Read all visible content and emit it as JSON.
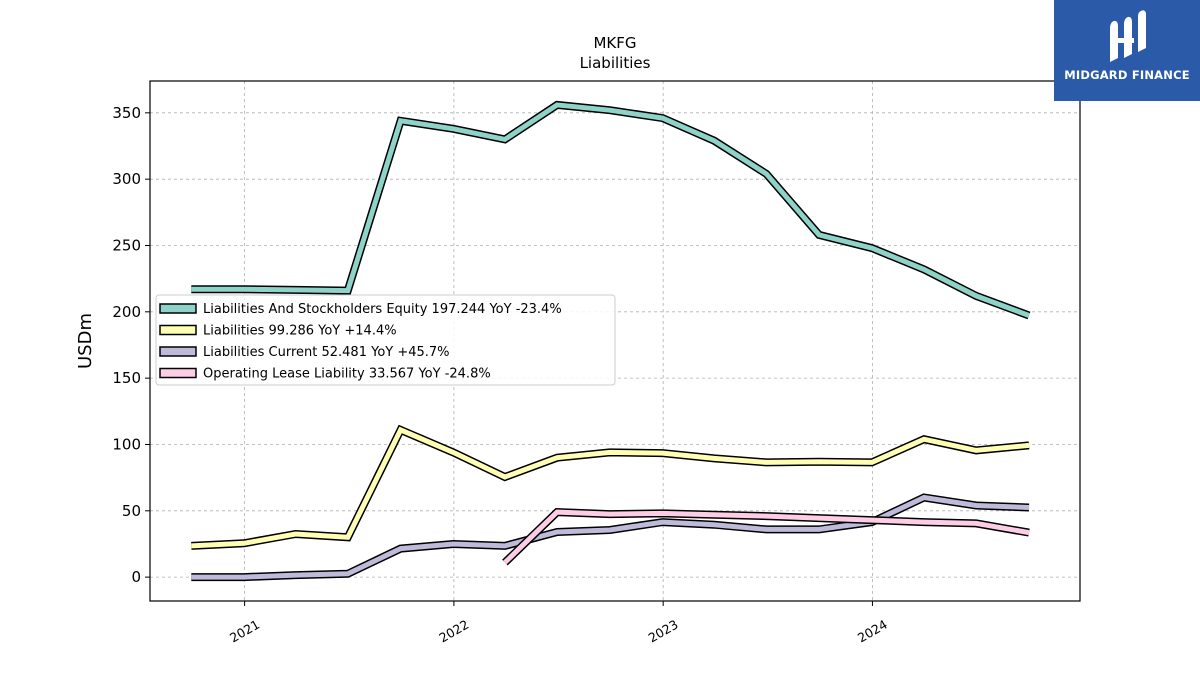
{
  "brand": {
    "name": "MIDGARD FINANCE",
    "color": "#2b5aa8"
  },
  "chart_data": {
    "type": "line",
    "title": "MKFG",
    "subtitle": "Liabilities",
    "xlabel": "",
    "ylabel": "USDm",
    "x_ticks": [
      "2021",
      "2022",
      "2023",
      "2024"
    ],
    "y_ticks": [
      0,
      50,
      100,
      150,
      200,
      250,
      300,
      350
    ],
    "xlim": [
      "2020-07-20",
      "2024-12-28"
    ],
    "ylim": [
      -18,
      374
    ],
    "grid": true,
    "legend_position": "center-left",
    "series": [
      {
        "name": "Liabilities And Stockholders Equity",
        "legend": "Liabilities And Stockholders Equity  197.244 YoY -23.4%",
        "color": "#8dd3c7",
        "x": [
          "2020-09-30",
          "2020-12-31",
          "2021-03-31",
          "2021-06-30",
          "2021-09-30",
          "2021-12-31",
          "2022-03-31",
          "2022-06-30",
          "2022-09-30",
          "2022-12-31",
          "2023-03-31",
          "2023-06-30",
          "2023-09-30",
          "2023-12-31",
          "2024-03-31",
          "2024-06-30",
          "2024-09-30"
        ],
        "values": [
          217,
          217,
          216.5,
          216,
          344,
          338,
          330,
          356,
          352,
          346,
          329,
          304,
          258,
          248,
          232,
          212,
          197.244
        ]
      },
      {
        "name": "Liabilities",
        "legend": "Liabilities  99.286 YoY +14.4%",
        "color": "#ffffb3",
        "x": [
          "2020-09-30",
          "2020-12-31",
          "2021-03-31",
          "2021-06-30",
          "2021-09-30",
          "2021-12-31",
          "2022-03-31",
          "2022-06-30",
          "2022-09-30",
          "2022-12-31",
          "2023-03-31",
          "2023-06-30",
          "2023-09-30",
          "2023-12-31",
          "2024-03-31",
          "2024-06-30",
          "2024-09-30"
        ],
        "values": [
          23.5,
          25.5,
          32.5,
          30,
          111,
          94,
          75.5,
          90,
          94,
          93.5,
          89.5,
          86.5,
          87,
          86.5,
          104,
          95.5,
          99.286
        ]
      },
      {
        "name": "Liabilities Current",
        "legend": "Liabilities Current  52.481 YoY +45.7%",
        "color": "#bebada",
        "x": [
          "2020-09-30",
          "2020-12-31",
          "2021-03-31",
          "2021-06-30",
          "2021-09-30",
          "2021-12-31",
          "2022-03-31",
          "2022-06-30",
          "2022-09-30",
          "2022-12-31",
          "2023-03-31",
          "2023-06-30",
          "2023-09-30",
          "2023-12-31",
          "2024-03-31",
          "2024-06-30",
          "2024-09-30"
        ],
        "values": [
          0,
          0,
          1.5,
          2.5,
          21.5,
          25,
          23.5,
          34,
          35.5,
          41.5,
          39.5,
          36,
          36,
          41.5,
          60,
          54,
          52.481
        ]
      },
      {
        "name": "Operating Lease Liability",
        "legend": "Operating Lease Liability  33.567 YoY -24.8%",
        "color": "#fccde5",
        "x": [
          "2022-03-31",
          "2022-06-30",
          "2022-09-30",
          "2022-12-31",
          "2023-03-31",
          "2023-06-30",
          "2023-09-30",
          "2023-12-31",
          "2024-03-31",
          "2024-06-30",
          "2024-09-30"
        ],
        "values": [
          11,
          49,
          47.5,
          48,
          47,
          46,
          44.5,
          43,
          41.5,
          40.5,
          33.567
        ]
      }
    ]
  }
}
